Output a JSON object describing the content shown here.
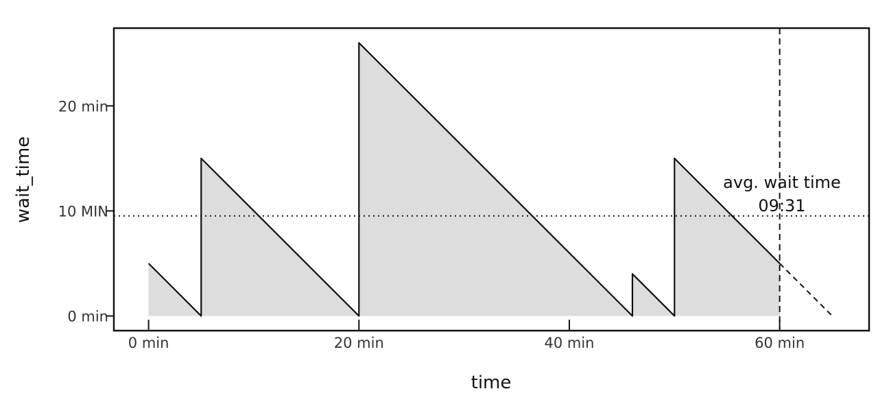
{
  "chart_data": {
    "type": "area",
    "xlabel": "time",
    "ylabel": "wait_time",
    "xlim": [
      -3.3,
      68.5
    ],
    "ylim": [
      -1.4,
      27.4
    ],
    "x_ticks": [
      {
        "value": 0,
        "label": "0 min"
      },
      {
        "value": 20,
        "label": "20 min"
      },
      {
        "value": 40,
        "label": "40 min"
      },
      {
        "value": 60,
        "label": "60 min"
      }
    ],
    "y_ticks": [
      {
        "value": 0,
        "label": "0 min"
      },
      {
        "value": 10,
        "label": "10 MIN"
      },
      {
        "value": 20,
        "label": "20 min"
      }
    ],
    "series": [
      {
        "x": [
          0,
          5,
          5,
          20,
          20,
          46,
          46,
          50,
          50,
          60
        ],
        "y": [
          5,
          0,
          15,
          0,
          26,
          0,
          4,
          0,
          15,
          5
        ]
      }
    ],
    "projection": {
      "x": [
        60,
        65
      ],
      "y": [
        5,
        0
      ]
    },
    "average_line": {
      "value": 9.52
    },
    "now_marker": {
      "x": 60
    },
    "annotation": {
      "line1": "avg. wait time",
      "line2": "09:31"
    },
    "colors": {
      "fill": "#dddddd",
      "line": "#111111",
      "frame": "#111111"
    }
  }
}
